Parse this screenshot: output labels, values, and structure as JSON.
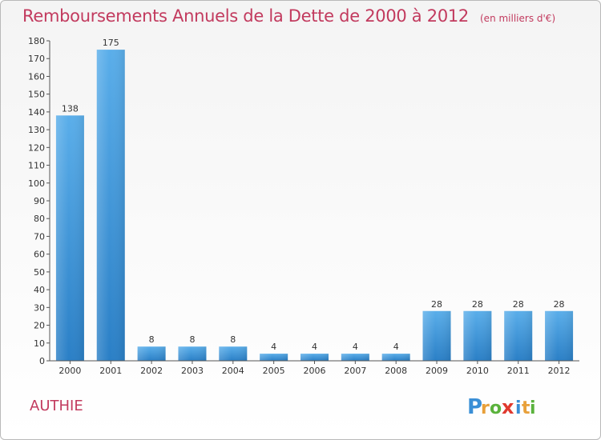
{
  "header": {
    "title": "Remboursements Annuels de la Dette de 2000 à 2012",
    "unit": "(en milliers d'€)"
  },
  "footer": {
    "commune": "AUTHIE",
    "logo_text": "Proxiti",
    "logo_letters": [
      "P",
      "r",
      "o",
      "x",
      "i",
      "t",
      "i"
    ],
    "logo_colors": [
      "#3a8fd6",
      "#e8a03a",
      "#5ab23c",
      "#e0392e",
      "#3a8fd6",
      "#e8a03a",
      "#5ab23c"
    ]
  },
  "chart_data": {
    "type": "bar",
    "categories": [
      "2000",
      "2001",
      "2002",
      "2003",
      "2004",
      "2005",
      "2006",
      "2007",
      "2008",
      "2009",
      "2010",
      "2011",
      "2012"
    ],
    "values": [
      138,
      175,
      8,
      8,
      8,
      4,
      4,
      4,
      4,
      28,
      28,
      28,
      28
    ],
    "data_labels": [
      "138",
      "175",
      "8",
      "8",
      "8",
      "4",
      "4",
      "4",
      "4",
      "28",
      "28",
      "28",
      "28"
    ],
    "ylim": [
      0,
      180
    ],
    "yticks": [
      0,
      10,
      20,
      30,
      40,
      50,
      60,
      70,
      80,
      90,
      100,
      110,
      120,
      130,
      140,
      150,
      160,
      170,
      180
    ],
    "title": "Remboursements Annuels de la Dette de 2000 à 2012",
    "xlabel": "",
    "ylabel": "",
    "grid": false,
    "bar_color_top": "#5aaeea",
    "bar_color_bottom": "#2a7fc6"
  }
}
